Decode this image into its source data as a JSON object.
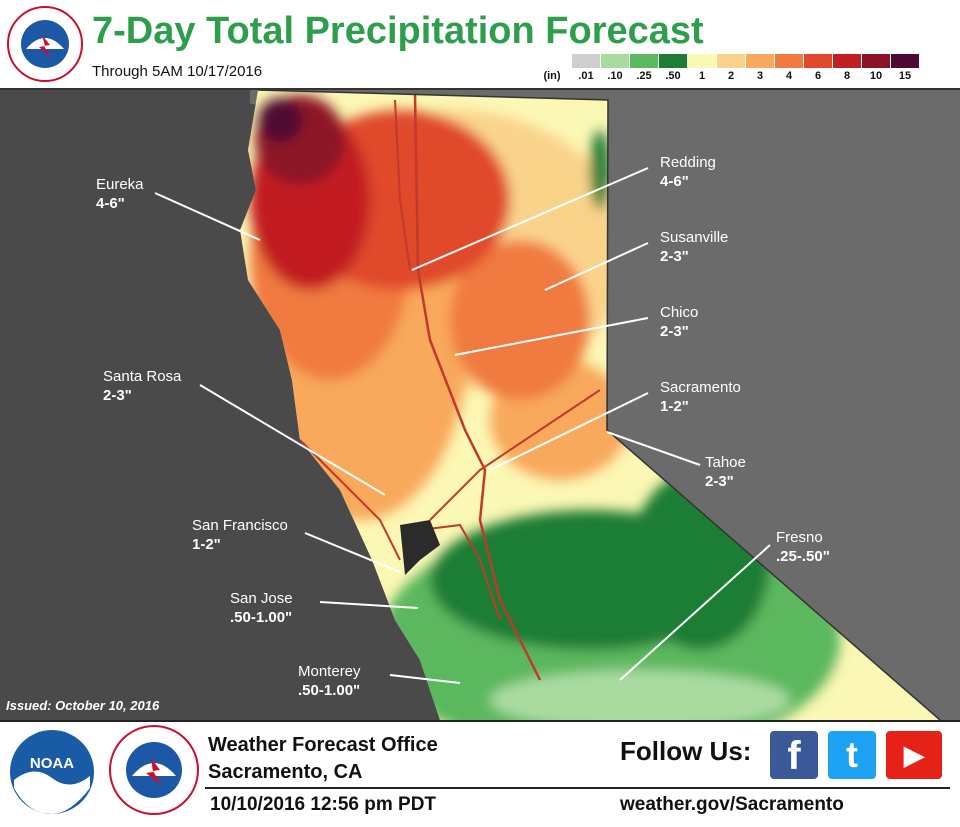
{
  "header": {
    "title": "7-Day Total Precipitation Forecast",
    "subtitle": "Through 5AM 10/17/2016"
  },
  "legend": {
    "unit_label": "(in)",
    "items": [
      {
        "label": ".01",
        "color": "#cfcfcf"
      },
      {
        "label": ".10",
        "color": "#a9dba0"
      },
      {
        "label": ".25",
        "color": "#5cb85f"
      },
      {
        "label": ".50",
        "color": "#1d7d35"
      },
      {
        "label": "1",
        "color": "#fbf7b4"
      },
      {
        "label": "2",
        "color": "#fad38b"
      },
      {
        "label": "3",
        "color": "#f8a95b"
      },
      {
        "label": "4",
        "color": "#f07a3f"
      },
      {
        "label": "6",
        "color": "#e0492a"
      },
      {
        "label": "8",
        "color": "#c21f23"
      },
      {
        "label": "10",
        "color": "#8c1228"
      },
      {
        "label": "15",
        "color": "#4d0a32"
      }
    ]
  },
  "map": {
    "locations": [
      {
        "name": "Eureka",
        "value": "4-6\""
      },
      {
        "name": "Redding",
        "value": "4-6\""
      },
      {
        "name": "Susanville",
        "value": "2-3\""
      },
      {
        "name": "Chico",
        "value": "2-3\""
      },
      {
        "name": "Santa Rosa",
        "value": "2-3\""
      },
      {
        "name": "Sacramento",
        "value": "1-2\""
      },
      {
        "name": "Tahoe",
        "value": "2-3\""
      },
      {
        "name": "San Francisco",
        "value": "1-2\""
      },
      {
        "name": "Fresno",
        "value": ".25-.50\""
      },
      {
        "name": "San Jose",
        "value": ".50-1.00\""
      },
      {
        "name": "Monterey",
        "value": ".50-1.00\""
      }
    ],
    "issued": "Issued: October 10, 2016"
  },
  "footer": {
    "office_line1": "Weather Forecast Office",
    "office_line2": "Sacramento, CA",
    "datetime": "10/10/2016  12:56 pm PDT",
    "follow": "Follow Us:",
    "website": "weather.gov/Sacramento",
    "noaa_logo_text": "NOAA",
    "nws_logo_text": "NATIONAL WEATHER SERVICE",
    "social": [
      {
        "icon": "facebook-icon",
        "glyph": "f",
        "color": "#3b5998"
      },
      {
        "icon": "twitter-icon",
        "glyph": "t",
        "color": "#1da1f2"
      },
      {
        "icon": "youtube-icon",
        "glyph": "▶",
        "color": "#e62117"
      }
    ]
  }
}
